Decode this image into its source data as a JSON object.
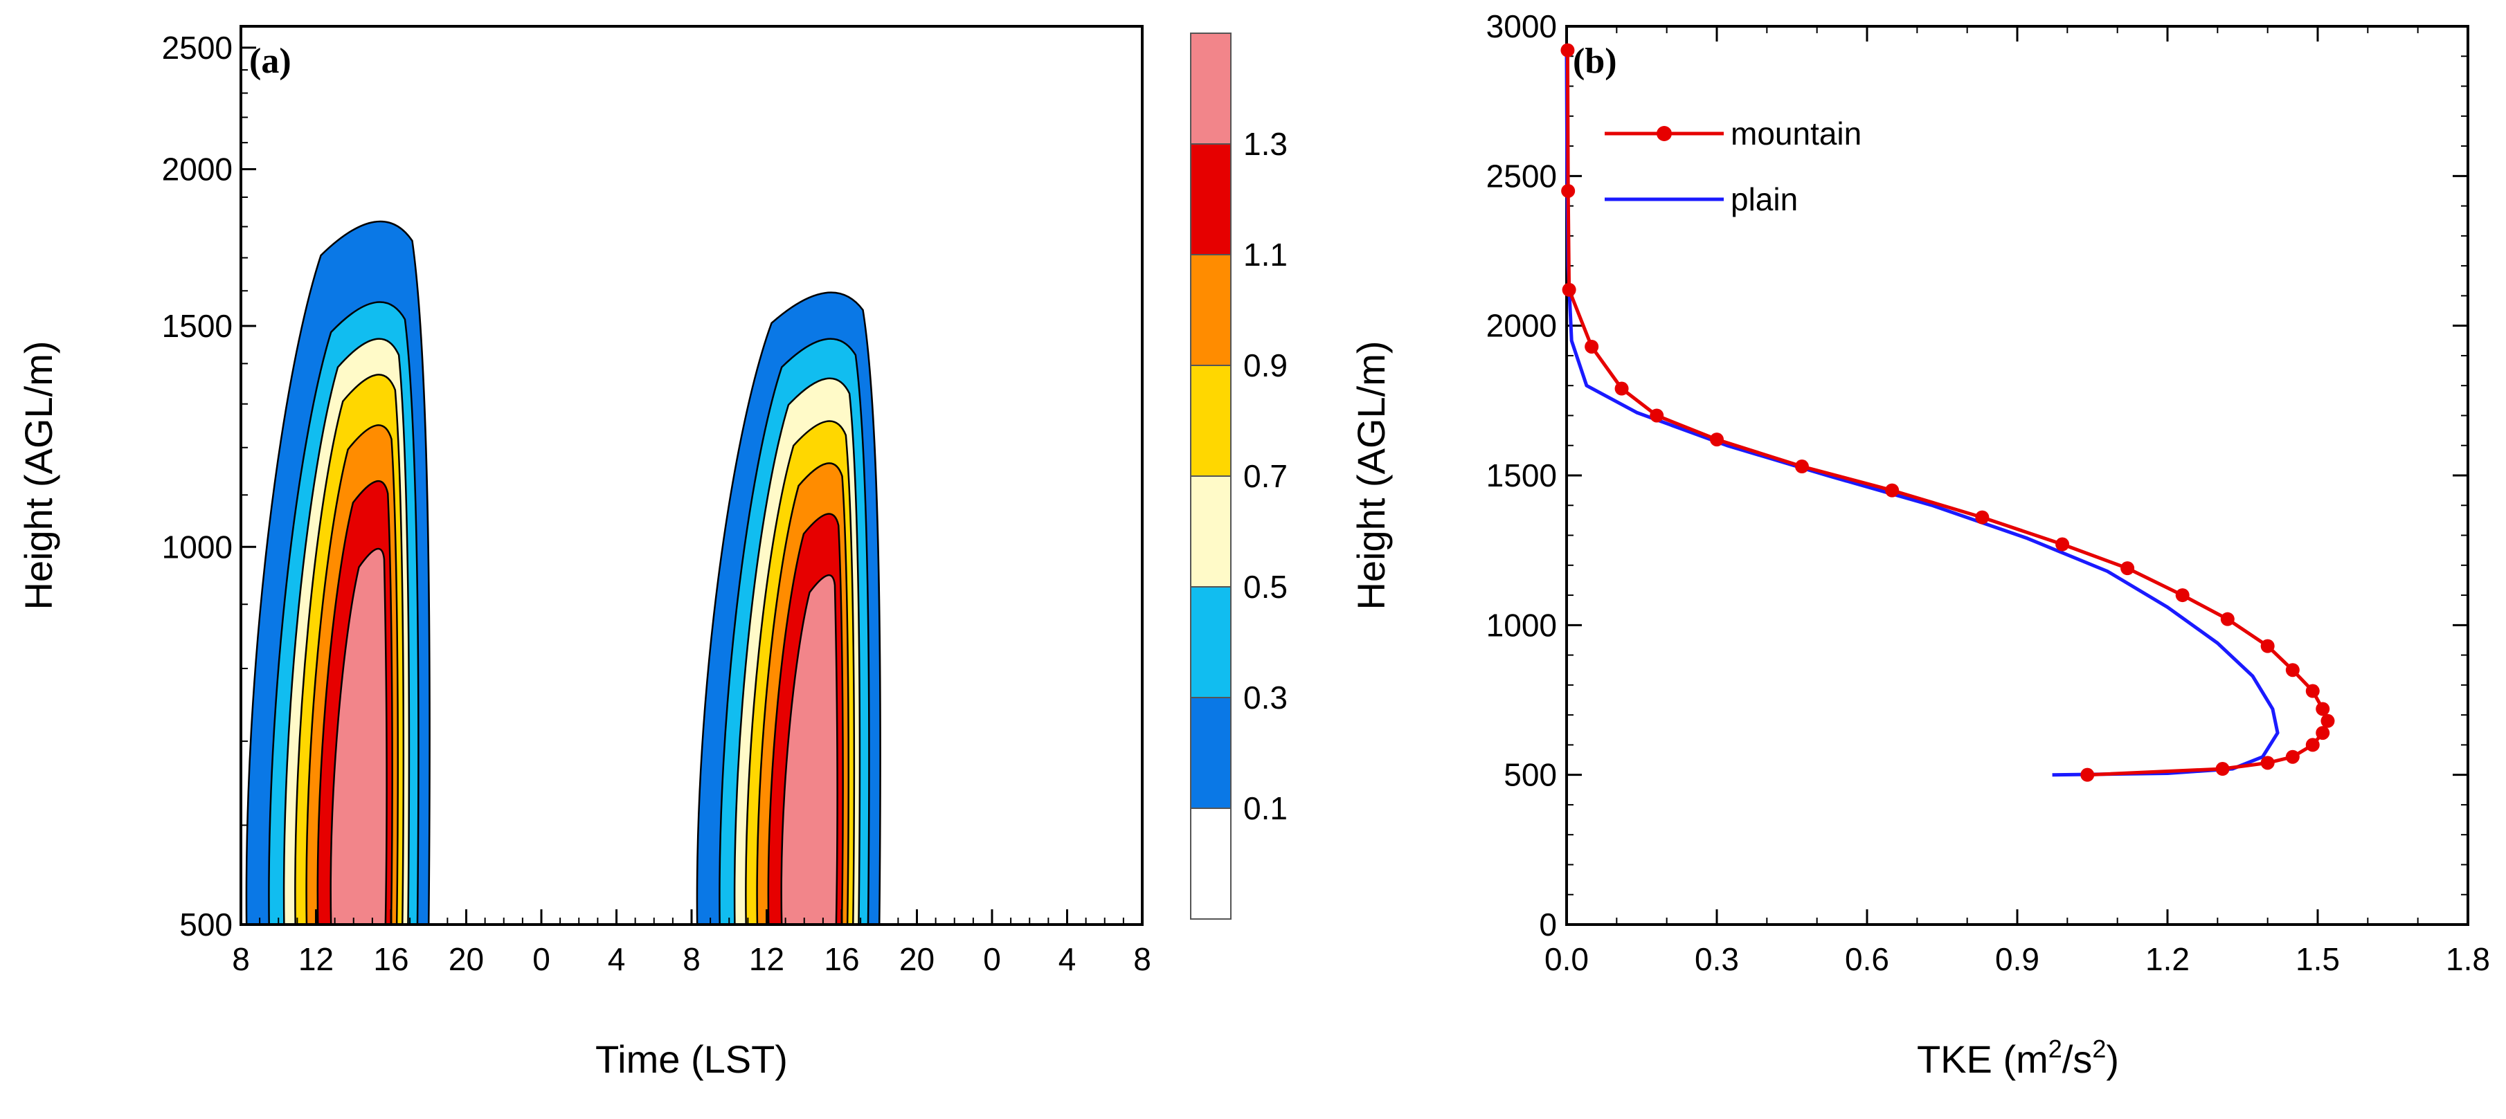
{
  "chart_data": [
    {
      "panel": "(a)",
      "type": "heatmap",
      "subtype": "filled-contour",
      "xlabel": "Time (LST)",
      "ylabel": "Height (AGL/m)",
      "x_ticks": [
        "8",
        "12",
        "16",
        "20",
        "0",
        "4",
        "8",
        "12",
        "16",
        "20",
        "0",
        "4",
        "8"
      ],
      "y_ticks": [
        500,
        1000,
        1500,
        2000,
        2500
      ],
      "ylim": [
        500,
        2600
      ],
      "y_scale": "log",
      "colorbar": {
        "levels": [
          "0.1",
          "0.3",
          "0.5",
          "0.7",
          "0.9",
          "1.1",
          "1.3"
        ],
        "colors": [
          "#ffffff",
          "#0a78e6",
          "#11bdf0",
          "#fffac8",
          "#ffd700",
          "#ff8c00",
          "#e60000",
          "#f2858a"
        ]
      },
      "plumes": [
        {
          "day": 1,
          "peak_time_hour": 14,
          "shells": [
            {
              "level_index": 1,
              "top_height": 1900,
              "left_hour": 8.3,
              "right_hour": 18.0
            },
            {
              "level_index": 2,
              "top_height": 1630,
              "left_hour": 9.5,
              "right_hour": 17.4
            },
            {
              "level_index": 3,
              "top_height": 1520,
              "left_hour": 10.3,
              "right_hour": 16.9
            },
            {
              "level_index": 4,
              "top_height": 1420,
              "left_hour": 10.9,
              "right_hour": 16.6
            },
            {
              "level_index": 5,
              "top_height": 1290,
              "left_hour": 11.5,
              "right_hour": 16.3
            },
            {
              "level_index": 6,
              "top_height": 1160,
              "left_hour": 12.1,
              "right_hour": 16.0
            },
            {
              "level_index": 7,
              "top_height": 1020,
              "left_hour": 12.8,
              "right_hour": 15.7
            }
          ]
        },
        {
          "day": 2,
          "peak_time_hour": 14,
          "shells": [
            {
              "level_index": 1,
              "top_height": 1660,
              "left_hour": 8.3,
              "right_hour": 18.0
            },
            {
              "level_index": 2,
              "top_height": 1520,
              "left_hour": 9.5,
              "right_hour": 17.4
            },
            {
              "level_index": 3,
              "top_height": 1410,
              "left_hour": 10.3,
              "right_hour": 16.9
            },
            {
              "level_index": 4,
              "top_height": 1300,
              "left_hour": 10.9,
              "right_hour": 16.6
            },
            {
              "level_index": 5,
              "top_height": 1200,
              "left_hour": 11.5,
              "right_hour": 16.3
            },
            {
              "level_index": 6,
              "top_height": 1090,
              "left_hour": 12.1,
              "right_hour": 16.0
            },
            {
              "level_index": 7,
              "top_height": 970,
              "left_hour": 12.8,
              "right_hour": 15.7
            }
          ]
        }
      ]
    },
    {
      "panel": "(b)",
      "type": "line",
      "xlabel": "TKE (m²/s²)",
      "xlabel_main": "TKE (m",
      "xlabel_sup1": "2",
      "xlabel_mid": "/s",
      "xlabel_sup2": "2",
      "xlabel_end": ")",
      "ylabel": "Height (AGL/m)",
      "xlim": [
        0,
        1.8
      ],
      "ylim": [
        0,
        3000
      ],
      "x_ticks": [
        "0.0",
        "0.3",
        "0.6",
        "0.9",
        "1.2",
        "1.5",
        "1.8"
      ],
      "y_ticks": [
        "0",
        "500",
        "1000",
        "1500",
        "2000",
        "2500",
        "3000"
      ],
      "legend_position": "top-left",
      "series": [
        {
          "name": "mountain",
          "color": "#e60000",
          "marker": "circle",
          "points": [
            [
              1.04,
              500
            ],
            [
              1.31,
              520
            ],
            [
              1.4,
              540
            ],
            [
              1.45,
              560
            ],
            [
              1.49,
              600
            ],
            [
              1.51,
              640
            ],
            [
              1.52,
              680
            ],
            [
              1.51,
              720
            ],
            [
              1.49,
              780
            ],
            [
              1.45,
              850
            ],
            [
              1.4,
              930
            ],
            [
              1.32,
              1020
            ],
            [
              1.23,
              1100
            ],
            [
              1.12,
              1190
            ],
            [
              0.99,
              1270
            ],
            [
              0.83,
              1360
            ],
            [
              0.65,
              1450
            ],
            [
              0.47,
              1530
            ],
            [
              0.3,
              1620
            ],
            [
              0.18,
              1700
            ],
            [
              0.11,
              1790
            ],
            [
              0.05,
              1930
            ],
            [
              0.005,
              2120
            ],
            [
              0.003,
              2450
            ],
            [
              0.002,
              2920
            ]
          ]
        },
        {
          "name": "plain",
          "color": "#1a1aff",
          "marker": "none",
          "points": [
            [
              0.97,
              500
            ],
            [
              1.2,
              505
            ],
            [
              1.33,
              520
            ],
            [
              1.39,
              560
            ],
            [
              1.42,
              640
            ],
            [
              1.41,
              720
            ],
            [
              1.37,
              830
            ],
            [
              1.3,
              940
            ],
            [
              1.2,
              1060
            ],
            [
              1.08,
              1180
            ],
            [
              0.92,
              1290
            ],
            [
              0.73,
              1400
            ],
            [
              0.52,
              1500
            ],
            [
              0.32,
              1600
            ],
            [
              0.14,
              1710
            ],
            [
              0.04,
              1800
            ],
            [
              0.01,
              1950
            ],
            [
              0.003,
              2200
            ],
            [
              0.001,
              2500
            ],
            [
              0.0,
              2900
            ]
          ]
        }
      ]
    }
  ]
}
